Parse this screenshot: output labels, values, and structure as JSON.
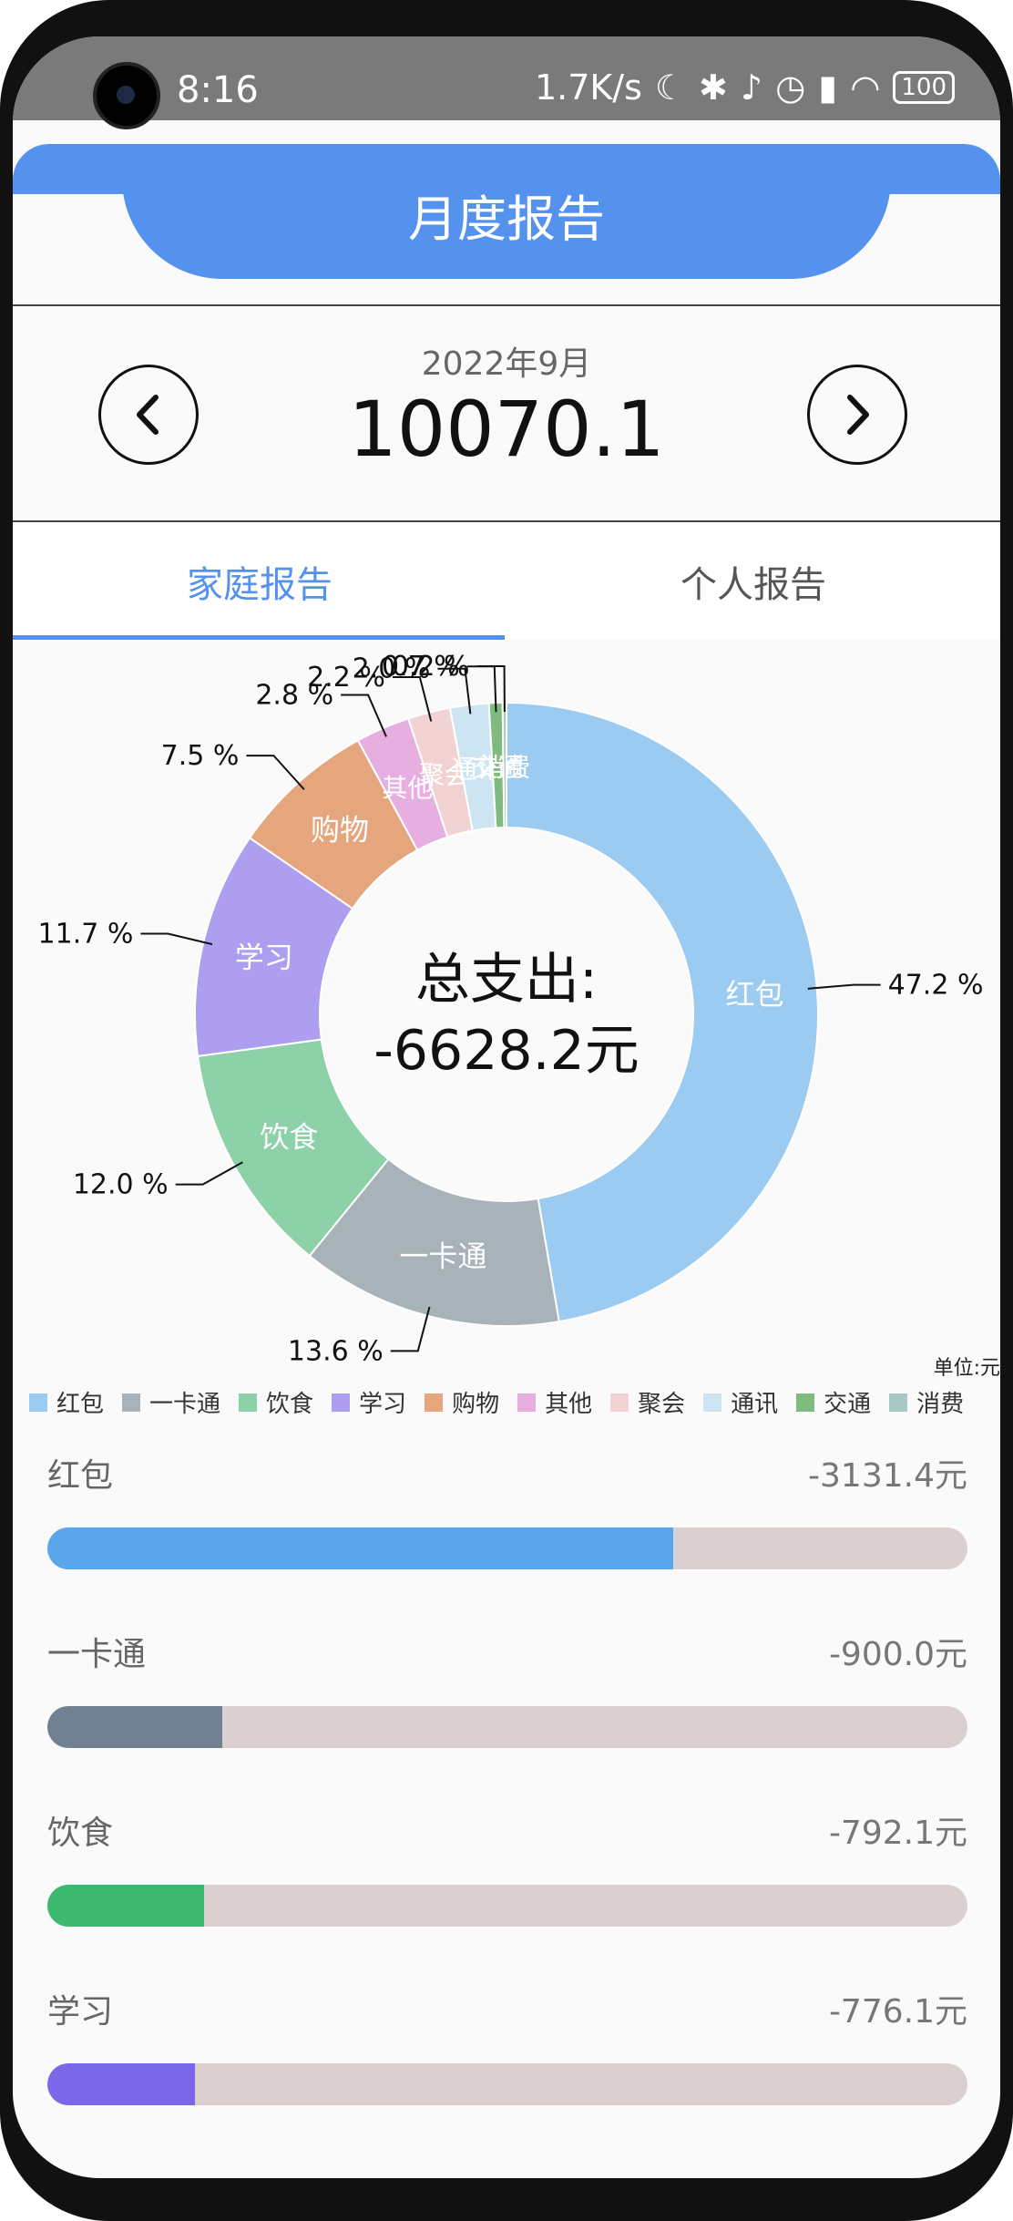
{
  "status_bar": {
    "time": "8:16",
    "network_speed": "1.7K/s",
    "battery": "100",
    "icons": [
      "moon-icon",
      "bluetooth-icon",
      "bell-muted-icon",
      "alarm-icon",
      "signal-icon",
      "wifi-icon"
    ]
  },
  "header": {
    "title": "月度报告"
  },
  "month": {
    "label": "2022年9月",
    "total": "10070.1",
    "prev_icon": "chevron-left-icon",
    "next_icon": "chevron-right-icon"
  },
  "tabs": [
    {
      "label": "家庭报告",
      "active": true
    },
    {
      "label": "个人报告",
      "active": false
    }
  ],
  "chart_data": {
    "type": "pie",
    "center_label_line1": "总支出:",
    "center_label_line2": "-6628.2元",
    "unit_label": "单位:元",
    "slices": [
      {
        "name": "红包",
        "value": 3131.4,
        "percent_label": "47.2 %",
        "color": "#9ccbf1"
      },
      {
        "name": "一卡通",
        "value": 900.0,
        "percent_label": "13.6 %",
        "color": "#a8b2b9"
      },
      {
        "name": "饮食",
        "value": 792.1,
        "percent_label": "12.0 %",
        "color": "#8dd1a9"
      },
      {
        "name": "学习",
        "value": 776.1,
        "percent_label": "11.7 %",
        "color": "#ae9ef0"
      },
      {
        "name": "购物",
        "value": 497.1,
        "percent_label": "7.5 %",
        "color": "#e5a67d"
      },
      {
        "name": "其他",
        "value": 185.6,
        "percent_label": "2.8 %",
        "color": "#e7aee0"
      },
      {
        "name": "聚会",
        "value": 145.8,
        "percent_label": "2.2 %",
        "color": "#f1d3d4"
      },
      {
        "name": "通讯",
        "value": 132.6,
        "percent_label": "2.0 %",
        "color": "#cde5f3"
      },
      {
        "name": "交通",
        "value": 46.4,
        "percent_label": "0.7 %",
        "color": "#7fba7e"
      },
      {
        "name": "消费",
        "value": 13.3,
        "percent_label": "0.2 %",
        "color": "#a7c8c5"
      }
    ]
  },
  "legend": [
    {
      "name": "红包",
      "color": "#9ccbf1"
    },
    {
      "name": "一卡通",
      "color": "#a8b2b9"
    },
    {
      "name": "饮食",
      "color": "#8dd1a9"
    },
    {
      "name": "学习",
      "color": "#ae9ef0"
    },
    {
      "name": "购物",
      "color": "#e5a67d"
    },
    {
      "name": "其他",
      "color": "#e7aee0"
    },
    {
      "name": "聚会",
      "color": "#f1d3d4"
    },
    {
      "name": "通讯",
      "color": "#cde5f3"
    },
    {
      "name": "交通",
      "color": "#7fba7e"
    },
    {
      "name": "消费",
      "color": "#a7c8c5"
    }
  ],
  "bars": [
    {
      "name": "红包",
      "amount": "-3131.4元",
      "fraction": 0.68,
      "color": "#5aa6ea"
    },
    {
      "name": "一卡通",
      "amount": "-900.0元",
      "fraction": 0.19,
      "color": "#718191"
    },
    {
      "name": "饮食",
      "amount": "-792.1元",
      "fraction": 0.17,
      "color": "#3cb86f"
    },
    {
      "name": "学习",
      "amount": "-776.1元",
      "fraction": 0.16,
      "color": "#7b67e9"
    }
  ]
}
